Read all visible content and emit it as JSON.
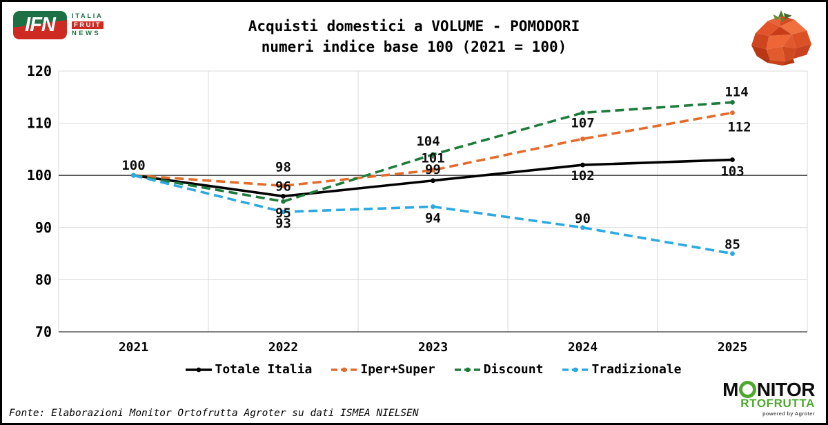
{
  "header": {
    "ifn_logo": {
      "acronym": "IFN",
      "italia": "ITALIA",
      "fruit": "FRUIT",
      "news": "NEWS"
    },
    "title_line1": "Acquisti domestici a VOLUME - POMODORI",
    "title_line2": "numeri indice base 100 (2021 = 100)"
  },
  "chart_data": {
    "type": "line",
    "title": "Acquisti domestici a VOLUME - POMODORI",
    "subtitle": "numeri indice base 100 (2021 = 100)",
    "categories": [
      "2021",
      "2022",
      "2023",
      "2024",
      "2025"
    ],
    "series": [
      {
        "name": "Totale Italia",
        "color": "#000000",
        "dashed": false,
        "values": [
          100,
          96,
          99,
          102,
          103
        ],
        "labels": [
          {
            "text": "100",
            "dy": -15
          },
          {
            "text": "96",
            "dy": -15
          },
          {
            "text": "99",
            "dy": -17
          },
          {
            "text": "102",
            "dy": 15
          },
          {
            "text": "103",
            "dy": 16
          }
        ]
      },
      {
        "name": "Iper+Super",
        "color": "#E36C2C",
        "dashed": true,
        "values": [
          100,
          98,
          101,
          107,
          112
        ],
        "labels": [
          null,
          {
            "text": "98",
            "dy": -28
          },
          {
            "text": "101",
            "dy": -18
          },
          {
            "text": "107",
            "dy": -24
          },
          {
            "text": "112",
            "dy": 20,
            "dx": 10
          }
        ]
      },
      {
        "name": "Discount",
        "color": "#1E7B3C",
        "dashed": true,
        "values": [
          100,
          95,
          104,
          112,
          114
        ],
        "labels": [
          null,
          {
            "text": "95",
            "dy": 16
          },
          {
            "text": "104",
            "dy": -20,
            "dx": -7
          },
          null,
          {
            "text": "114",
            "dy": -16,
            "dx": 6
          }
        ]
      },
      {
        "name": "Tradizionale",
        "color": "#2BA9E0",
        "dashed": true,
        "values": [
          100,
          93,
          94,
          90,
          85
        ],
        "labels": [
          null,
          {
            "text": "93",
            "dy": 16
          },
          {
            "text": "94",
            "dy": 16
          },
          {
            "text": "90",
            "dy": -14
          },
          {
            "text": "85",
            "dy": -14
          }
        ]
      }
    ],
    "ylim": [
      70,
      120
    ],
    "yticks": [
      70,
      80,
      90,
      100,
      110,
      120
    ],
    "baseline": 100,
    "grid": true,
    "legend_position": "bottom"
  },
  "footer": {
    "source": "Fonte: Elaborazioni Monitor Ortofrutta Agroter su dati ISMEA NIELSEN"
  },
  "branding": {
    "monitor": {
      "line1_prefix": "M",
      "line1_suffix": "NITOR",
      "line2": "RTOFRUTTA",
      "powered": "powered by Agroter"
    }
  },
  "colors": {
    "ifn_green": "#1D7044",
    "ifn_red": "#CD2A21",
    "monitor_green": "#4EA72E",
    "grid": "#D9D9D9",
    "baseline_line": "#3A3A3A",
    "axis_line": "#595959"
  }
}
